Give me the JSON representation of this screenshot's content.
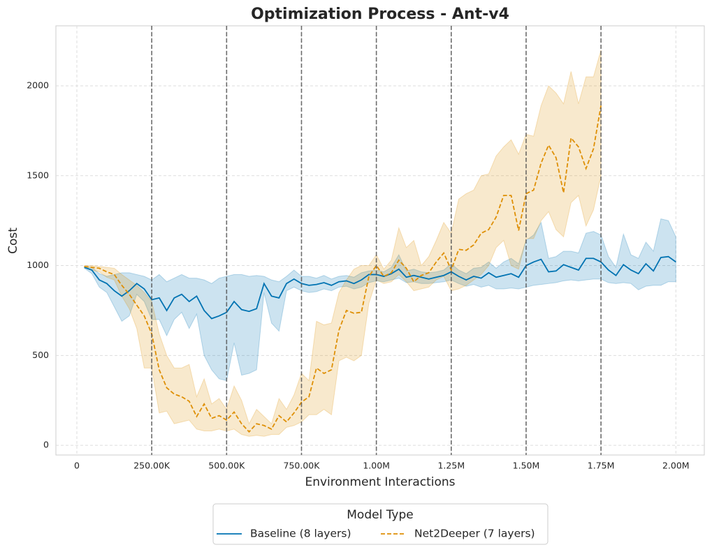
{
  "chart_data": {
    "type": "line",
    "title": "Optimization Process - Ant-v4",
    "xlabel": "Environment Interactions",
    "ylabel": "Cost",
    "xlim": [
      -70000,
      2095000
    ],
    "ylim": [
      -54,
      2334
    ],
    "xticks": [
      0,
      {
        "value": 250000,
        "label": "250.00K"
      },
      {
        "value": 500000,
        "label": "500.00K"
      },
      {
        "value": 750000,
        "label": "750.00K"
      },
      {
        "value": 1000000,
        "label": "1.00M"
      },
      {
        "value": 1250000,
        "label": "1.25M"
      },
      {
        "value": 1500000,
        "label": "1.50M"
      },
      {
        "value": 1750000,
        "label": "1.75M"
      },
      {
        "value": 2000000,
        "label": "2.00M"
      }
    ],
    "yticks": [
      0,
      500,
      1000,
      1500,
      2000
    ],
    "vlines": [
      250000,
      500000,
      750000,
      1000000,
      1250000,
      1500000,
      1750000
    ],
    "grid": true,
    "legend_title": "Model Type",
    "legend_position": "bottom",
    "series": [
      {
        "name": "Baseline (8 layers)",
        "color": "#0173b2",
        "linestyle": "solid",
        "x": [
          25000,
          50000,
          75000,
          100000,
          125000,
          150000,
          175000,
          200000,
          225000,
          250000,
          275000,
          300000,
          325000,
          350000,
          375000,
          400000,
          425000,
          450000,
          475000,
          500000,
          525000,
          550000,
          575000,
          600000,
          625000,
          650000,
          675000,
          700000,
          725000,
          750000,
          775000,
          800000,
          825000,
          850000,
          875000,
          900000,
          925000,
          950000,
          975000,
          1000000,
          1025000,
          1050000,
          1075000,
          1100000,
          1125000,
          1150000,
          1175000,
          1200000,
          1225000,
          1250000,
          1275000,
          1300000,
          1325000,
          1350000,
          1375000,
          1400000,
          1425000,
          1450000,
          1475000,
          1500000,
          1525000,
          1550000,
          1575000,
          1600000,
          1625000,
          1650000,
          1675000,
          1700000,
          1725000,
          1750000,
          1775000,
          1800000,
          1825000,
          1850000,
          1875000,
          1900000,
          1925000,
          1950000,
          1975000,
          2000000
        ],
        "values": [
          990,
          975,
          920,
          900,
          860,
          830,
          860,
          900,
          870,
          810,
          820,
          750,
          820,
          840,
          800,
          830,
          750,
          705,
          720,
          740,
          800,
          755,
          745,
          760,
          900,
          830,
          820,
          900,
          925,
          900,
          890,
          895,
          905,
          890,
          910,
          915,
          900,
          920,
          950,
          950,
          940,
          955,
          980,
          935,
          945,
          935,
          925,
          935,
          945,
          965,
          940,
          920,
          940,
          930,
          960,
          935,
          945,
          955,
          935,
          1000,
          1020,
          1035,
          965,
          970,
          1005,
          990,
          975,
          1040,
          1040,
          1020,
          975,
          945,
          1005,
          975,
          955,
          1010,
          970,
          1045,
          1050,
          1020
        ],
        "lower": [
          985,
          955,
          880,
          850,
          770,
          690,
          720,
          840,
          800,
          700,
          700,
          610,
          700,
          740,
          650,
          730,
          500,
          420,
          370,
          360,
          570,
          390,
          400,
          420,
          850,
          680,
          635,
          860,
          880,
          860,
          850,
          855,
          870,
          860,
          880,
          885,
          870,
          880,
          905,
          915,
          910,
          920,
          930,
          905,
          910,
          900,
          900,
          905,
          910,
          920,
          900,
          885,
          895,
          880,
          890,
          870,
          870,
          875,
          870,
          880,
          890,
          895,
          900,
          905,
          915,
          920,
          915,
          920,
          925,
          925,
          905,
          900,
          905,
          900,
          865,
          885,
          890,
          890,
          910,
          910
        ],
        "upper": [
          995,
          990,
          955,
          940,
          950,
          960,
          960,
          950,
          940,
          920,
          950,
          910,
          930,
          950,
          930,
          930,
          920,
          900,
          930,
          940,
          950,
          950,
          940,
          945,
          940,
          920,
          910,
          940,
          975,
          940,
          940,
          930,
          945,
          925,
          940,
          945,
          935,
          960,
          970,
          975,
          965,
          990,
          1060,
          970,
          980,
          965,
          960,
          965,
          975,
          1010,
          975,
          955,
          985,
          990,
          1020,
          985,
          1020,
          1040,
          1010,
          1140,
          1170,
          1240,
          1040,
          1050,
          1080,
          1080,
          1070,
          1180,
          1190,
          1170,
          1050,
          990,
          1175,
          1060,
          1040,
          1130,
          1080,
          1260,
          1250,
          1160
        ]
      },
      {
        "name": "Net2Deeper (7 layers)",
        "color": "#de8f05",
        "linestyle": "dashed",
        "x": [
          25000,
          50000,
          75000,
          100000,
          125000,
          150000,
          175000,
          200000,
          225000,
          250000,
          275000,
          300000,
          325000,
          350000,
          375000,
          400000,
          425000,
          450000,
          475000,
          500000,
          525000,
          550000,
          575000,
          600000,
          625000,
          650000,
          675000,
          700000,
          725000,
          750000,
          775000,
          800000,
          825000,
          850000,
          875000,
          900000,
          925000,
          950000,
          975000,
          1000000,
          1025000,
          1050000,
          1075000,
          1100000,
          1125000,
          1150000,
          1175000,
          1200000,
          1225000,
          1250000,
          1275000,
          1300000,
          1325000,
          1350000,
          1375000,
          1400000,
          1425000,
          1450000,
          1475000,
          1500000,
          1525000,
          1550000,
          1575000,
          1600000,
          1625000,
          1650000,
          1675000,
          1700000,
          1725000,
          1750000
        ],
        "values": [
          995,
          990,
          985,
          965,
          950,
          890,
          840,
          780,
          720,
          620,
          420,
          320,
          285,
          270,
          245,
          160,
          230,
          150,
          165,
          140,
          185,
          120,
          75,
          120,
          110,
          90,
          165,
          130,
          180,
          240,
          270,
          430,
          400,
          420,
          640,
          750,
          735,
          740,
          940,
          1000,
          940,
          960,
          1030,
          985,
          910,
          945,
          960,
          1020,
          1070,
          975,
          1090,
          1085,
          1115,
          1180,
          1200,
          1270,
          1390,
          1390,
          1195,
          1400,
          1420,
          1570,
          1670,
          1600,
          1405,
          1710,
          1660,
          1540,
          1650,
          1890
        ],
        "lower": [
          990,
          975,
          965,
          935,
          920,
          830,
          760,
          650,
          430,
          430,
          180,
          190,
          120,
          130,
          140,
          90,
          80,
          80,
          90,
          80,
          90,
          60,
          50,
          55,
          50,
          60,
          60,
          100,
          110,
          130,
          170,
          170,
          200,
          170,
          470,
          490,
          470,
          500,
          790,
          920,
          900,
          910,
          950,
          910,
          860,
          870,
          880,
          920,
          940,
          860,
          870,
          890,
          920,
          950,
          1000,
          1100,
          1140,
          1000,
          980,
          1150,
          1150,
          1250,
          1300,
          1200,
          1160,
          1350,
          1390,
          1220,
          1310,
          1500
        ],
        "upper": [
          1000,
          1000,
          995,
          990,
          985,
          950,
          920,
          890,
          850,
          800,
          620,
          500,
          430,
          430,
          450,
          270,
          370,
          230,
          260,
          200,
          330,
          250,
          120,
          200,
          160,
          120,
          260,
          200,
          280,
          400,
          360,
          690,
          670,
          680,
          850,
          920,
          980,
          1000,
          1000,
          1060,
          980,
          1030,
          1210,
          1100,
          1140,
          1000,
          1050,
          1140,
          1240,
          1180,
          1370,
          1400,
          1420,
          1500,
          1510,
          1610,
          1660,
          1700,
          1620,
          1730,
          1720,
          1890,
          2000,
          1960,
          1900,
          2080,
          1900,
          2050,
          2050,
          2200
        ]
      }
    ]
  }
}
